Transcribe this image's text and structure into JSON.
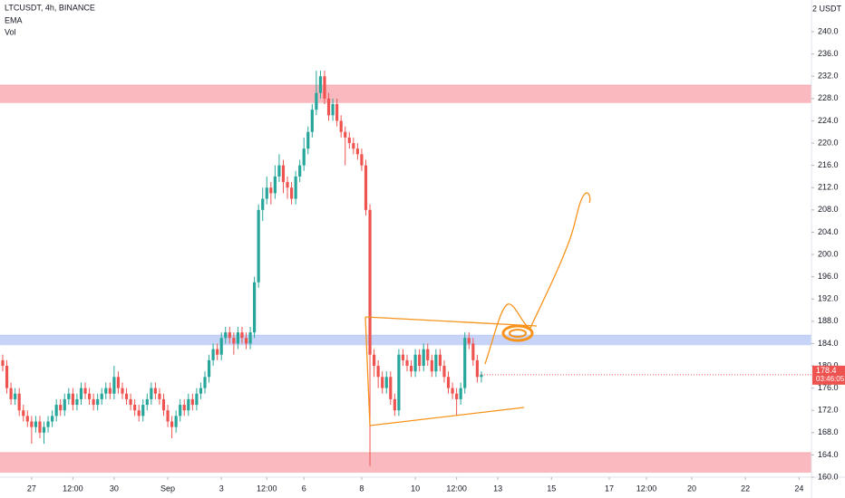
{
  "chart_data": {
    "type": "candlestick",
    "title": "LTCUSDT, 4h, BINANCE",
    "indicators": [
      "EMA",
      "Vol"
    ],
    "currency_label": "2 USDT",
    "countdown": "03:46:05",
    "colors": {
      "up": "#26a69a",
      "down": "#ef5350"
    },
    "xlim": [
      -0.66,
      196
    ],
    "xticks": [
      {
        "value": 7,
        "label": "27"
      },
      {
        "value": 17,
        "label": "12:00"
      },
      {
        "value": 27,
        "label": "30"
      },
      {
        "value": 40,
        "label": "Sep"
      },
      {
        "value": 53,
        "label": "3"
      },
      {
        "value": 64,
        "label": "12:00"
      },
      {
        "value": 73,
        "label": "6"
      },
      {
        "value": 87,
        "label": "8"
      },
      {
        "value": 100,
        "label": "10"
      },
      {
        "value": 110,
        "label": "12:00"
      },
      {
        "value": 120,
        "label": "13"
      },
      {
        "value": 133,
        "label": "15"
      },
      {
        "value": 147,
        "label": "17"
      },
      {
        "value": 156,
        "label": "12:00"
      },
      {
        "value": 167,
        "label": "20"
      },
      {
        "value": 180,
        "label": "22"
      },
      {
        "value": 193,
        "label": "24"
      }
    ],
    "ylim": [
      160,
      245.7
    ],
    "yticks": [
      {
        "value": 160,
        "label": "160.0"
      },
      {
        "value": 164,
        "label": "164.0"
      },
      {
        "value": 168,
        "label": "168.0"
      },
      {
        "value": 172,
        "label": "172.0"
      },
      {
        "value": 176,
        "label": "176.0"
      },
      {
        "value": 180,
        "label": "180.0"
      },
      {
        "value": 184,
        "label": "184.0"
      },
      {
        "value": 188,
        "label": "188.0"
      },
      {
        "value": 192,
        "label": "192.0"
      },
      {
        "value": 196,
        "label": "196.0"
      },
      {
        "value": 200,
        "label": "200.0"
      },
      {
        "value": 204,
        "label": "204.0"
      },
      {
        "value": 208,
        "label": "208.0"
      },
      {
        "value": 212,
        "label": "212.0"
      },
      {
        "value": 216,
        "label": "216.0"
      },
      {
        "value": 220,
        "label": "220.0"
      },
      {
        "value": 224,
        "label": "224.0"
      },
      {
        "value": 228,
        "label": "228.0"
      },
      {
        "value": 232,
        "label": "232.0"
      },
      {
        "value": 236,
        "label": "236.0"
      },
      {
        "value": 240,
        "label": "240.0"
      }
    ],
    "zones": [
      {
        "low": 227.2,
        "high": 230.4,
        "color": "#f7a8ae"
      },
      {
        "low": 183.7,
        "high": 185.5,
        "color": "#b9c9f5"
      },
      {
        "low": 160.8,
        "high": 164.4,
        "color": "#f7a8ae"
      }
    ],
    "candles": [
      [
        181,
        182,
        179,
        180
      ],
      [
        180,
        181,
        175,
        176
      ],
      [
        176,
        177,
        173,
        174
      ],
      [
        174,
        176,
        173,
        175
      ],
      [
        175,
        176,
        171,
        172
      ],
      [
        172,
        173,
        170,
        171
      ],
      [
        171,
        172,
        169,
        170
      ],
      [
        170,
        171,
        166,
        169
      ],
      [
        169,
        171,
        168,
        170
      ],
      [
        170,
        171,
        167,
        168
      ],
      [
        168,
        170,
        166,
        169
      ],
      [
        169,
        171,
        168,
        170
      ],
      [
        170,
        172,
        169,
        171
      ],
      [
        171,
        174,
        170,
        173
      ],
      [
        173,
        174,
        171,
        172
      ],
      [
        172,
        175,
        171,
        174
      ],
      [
        174,
        176,
        173,
        175
      ],
      [
        175,
        176,
        172,
        173
      ],
      [
        173,
        175,
        172,
        174
      ],
      [
        174,
        177,
        173,
        176
      ],
      [
        176,
        177,
        174,
        175
      ],
      [
        175,
        176,
        173,
        174
      ],
      [
        174,
        175,
        172,
        173
      ],
      [
        173,
        175,
        172,
        174
      ],
      [
        174,
        176,
        173,
        175
      ],
      [
        175,
        177,
        174,
        176
      ],
      [
        176,
        177,
        174,
        175
      ],
      [
        175,
        180,
        174,
        178
      ],
      [
        178,
        179,
        175,
        176
      ],
      [
        176,
        177,
        174,
        175
      ],
      [
        175,
        176,
        173,
        174
      ],
      [
        174,
        175,
        172,
        173
      ],
      [
        173,
        174,
        171,
        172
      ],
      [
        172,
        173,
        170,
        171
      ],
      [
        171,
        174,
        170,
        173
      ],
      [
        173,
        175,
        172,
        174
      ],
      [
        174,
        177,
        173,
        176
      ],
      [
        176,
        177,
        174,
        175
      ],
      [
        175,
        176,
        173,
        174
      ],
      [
        174,
        175,
        171,
        172
      ],
      [
        172,
        173,
        169,
        170
      ],
      [
        170,
        171,
        167,
        169
      ],
      [
        169,
        172,
        168,
        171
      ],
      [
        171,
        174,
        170,
        173
      ],
      [
        173,
        174,
        171,
        172
      ],
      [
        172,
        175,
        171,
        174
      ],
      [
        174,
        175,
        172,
        173
      ],
      [
        173,
        176,
        172,
        175
      ],
      [
        175,
        177,
        174,
        176
      ],
      [
        176,
        179,
        175,
        178
      ],
      [
        178,
        182,
        177,
        181
      ],
      [
        181,
        184,
        180,
        183
      ],
      [
        183,
        184,
        181,
        182
      ],
      [
        182,
        186,
        181,
        185
      ],
      [
        185,
        187,
        184,
        186
      ],
      [
        186,
        187,
        184,
        185
      ],
      [
        185,
        186,
        182,
        184
      ],
      [
        184,
        187,
        183,
        186
      ],
      [
        186,
        187,
        184,
        185
      ],
      [
        185,
        186,
        183,
        184
      ],
      [
        184,
        187,
        183,
        186
      ],
      [
        186,
        196,
        185,
        195
      ],
      [
        195,
        209,
        194,
        208
      ],
      [
        208,
        212,
        206,
        210
      ],
      [
        210,
        214,
        209,
        212
      ],
      [
        212,
        213,
        209,
        211
      ],
      [
        211,
        216,
        210,
        214
      ],
      [
        214,
        218,
        213,
        216
      ],
      [
        216,
        217,
        211,
        213
      ],
      [
        213,
        214,
        210,
        212
      ],
      [
        212,
        213,
        209,
        210
      ],
      [
        210,
        215,
        209,
        214
      ],
      [
        214,
        217,
        213,
        216
      ],
      [
        216,
        221,
        215,
        219
      ],
      [
        219,
        223,
        218,
        222
      ],
      [
        222,
        227,
        221,
        226
      ],
      [
        226,
        233,
        225,
        229
      ],
      [
        229,
        233,
        228,
        232
      ],
      [
        232,
        233,
        227,
        228
      ],
      [
        228,
        229,
        224,
        225
      ],
      [
        225,
        228,
        224,
        227
      ],
      [
        227,
        228,
        223,
        224
      ],
      [
        224,
        225,
        221,
        222
      ],
      [
        222,
        223,
        216,
        221
      ],
      [
        221,
        222,
        219,
        220
      ],
      [
        220,
        221,
        218,
        219
      ],
      [
        219,
        220,
        217,
        218
      ],
      [
        218,
        219,
        215,
        216
      ],
      [
        216,
        217,
        207,
        208
      ],
      [
        208,
        209,
        162,
        182
      ],
      [
        182,
        183,
        178,
        180
      ],
      [
        180,
        181,
        176,
        178
      ],
      [
        178,
        179,
        175,
        176
      ],
      [
        176,
        179,
        175,
        178
      ],
      [
        178,
        179,
        173,
        174
      ],
      [
        174,
        175,
        171,
        172
      ],
      [
        172,
        183,
        171,
        182
      ],
      [
        182,
        183,
        180,
        181
      ],
      [
        181,
        182,
        179,
        180
      ],
      [
        180,
        181,
        178,
        179
      ],
      [
        179,
        183,
        178,
        182
      ],
      [
        182,
        183,
        179,
        180
      ],
      [
        180,
        184,
        179,
        183
      ],
      [
        183,
        184,
        180,
        181
      ],
      [
        181,
        182,
        178,
        179
      ],
      [
        179,
        183,
        178,
        182
      ],
      [
        182,
        183,
        179,
        180
      ],
      [
        180,
        181,
        177,
        178
      ],
      [
        178,
        179,
        175,
        176
      ],
      [
        176,
        177,
        174,
        175
      ],
      [
        175,
        176,
        171,
        174
      ],
      [
        174,
        177,
        173,
        176
      ],
      [
        176,
        186,
        175,
        185
      ],
      [
        185,
        186,
        183,
        184
      ],
      [
        184,
        185,
        180,
        181
      ],
      [
        181,
        182,
        177,
        178
      ],
      [
        178,
        179,
        177,
        178.4
      ]
    ]
  }
}
